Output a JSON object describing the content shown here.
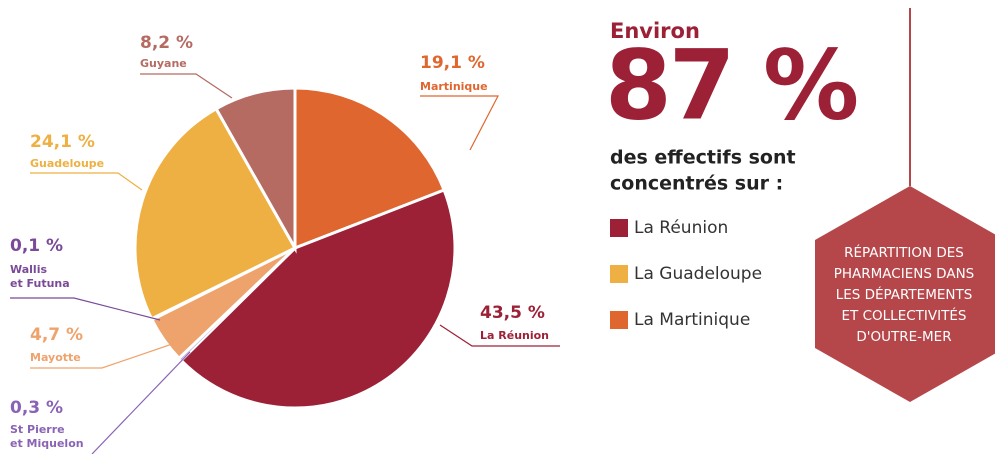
{
  "chart_data": {
    "type": "pie",
    "categories": [
      "Martinique",
      "La Réunion",
      "St Pierre et Miquelon",
      "Mayotte",
      "Wallis et Futuna",
      "Guadeloupe",
      "Guyane"
    ],
    "values": [
      19.1,
      43.5,
      0.3,
      4.7,
      0.1,
      24.1,
      8.2
    ],
    "value_labels": [
      "19,1 %",
      "43,5 %",
      "0,3 %",
      "4,7 %",
      "0,1 %",
      "24,1 %",
      "8,2 %"
    ],
    "colors": [
      "#e0662f",
      "#9c2036",
      "#c2b0dd",
      "#eea36c",
      "#7a4a98",
      "#eeb042",
      "#b56a62"
    ],
    "label_colors": [
      "#e0662f",
      "#9c2036",
      "#8a63b5",
      "#eea36c",
      "#7a4a98",
      "#eeb042",
      "#b56a62"
    ]
  },
  "headline": {
    "prefix": "Environ",
    "value": "87 %",
    "lines": [
      "des effectifs sont",
      "concentrés sur :"
    ]
  },
  "legend": [
    {
      "name": "La Réunion",
      "color": "#9c2036"
    },
    {
      "name": "La Guadeloupe",
      "color": "#eeb042"
    },
    {
      "name": "La Martinique",
      "color": "#e0662f"
    }
  ],
  "badge": {
    "lines": [
      "RÉPARTITION DES",
      "PHARMACIENS DANS",
      "LES DÉPARTEMENTS",
      "ET COLLECTIVITÉS",
      "D'OUTRE-MER"
    ]
  }
}
